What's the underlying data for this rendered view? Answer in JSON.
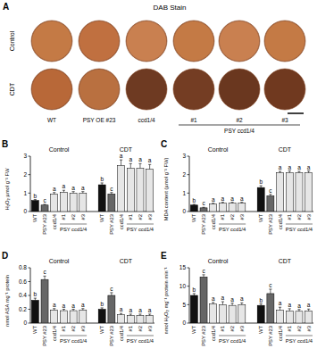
{
  "panel_a": {
    "panel_label": "A",
    "title": "DAB Stain",
    "rows": [
      "Control",
      "CDT"
    ],
    "columns": [
      "WT",
      "PSY OE #23",
      "ccd1/4",
      "#1",
      "#2",
      "#3"
    ],
    "group_label": "PSY ccd1/4"
  },
  "chart_data": [
    {
      "type": "bar",
      "panel_label": "B",
      "y_label": "H₂O₂ µmol g⁻¹ FW",
      "categories": [
        "WT",
        "PSY #23",
        "ccd1/4",
        "#1",
        "#2",
        "#3"
      ],
      "group_label": "PSY ccd1/4",
      "ylim": [
        0,
        3
      ],
      "yticks": [
        0,
        1,
        2,
        3
      ],
      "series": [
        {
          "name": "Control",
          "values": [
            0.6,
            0.35,
            0.95,
            1.05,
            1.0,
            1.0
          ],
          "errors": [
            0.05,
            0.04,
            0.08,
            0.1,
            0.08,
            0.08
          ],
          "annotations": [
            "b",
            "c",
            "a",
            "a",
            "a",
            "a"
          ],
          "colors": [
            "#111111",
            "#666666",
            "#e6e6e6",
            "#e6e6e6",
            "#e6e6e6",
            "#e6e6e6"
          ]
        },
        {
          "name": "CDT",
          "values": [
            1.45,
            0.95,
            2.5,
            2.35,
            2.35,
            2.3
          ],
          "errors": [
            0.1,
            0.08,
            0.3,
            0.25,
            0.25,
            0.25
          ],
          "annotations": [
            "b",
            "c",
            "a",
            "a",
            "a",
            "a"
          ],
          "colors": [
            "#111111",
            "#666666",
            "#e6e6e6",
            "#e6e6e6",
            "#e6e6e6",
            "#e6e6e6"
          ]
        }
      ]
    },
    {
      "type": "bar",
      "panel_label": "C",
      "y_label": "MDA content (µmol g⁻¹ FW)",
      "categories": [
        "WT",
        "PSY #23",
        "ccd1/4",
        "#1",
        "#2",
        "#3"
      ],
      "group_label": "PSY ccd1/4",
      "ylim": [
        0,
        3
      ],
      "yticks": [
        0,
        1,
        2,
        3
      ],
      "series": [
        {
          "name": "Control",
          "values": [
            0.35,
            0.2,
            0.4,
            0.45,
            0.45,
            0.45
          ],
          "errors": [
            0.04,
            0.03,
            0.05,
            0.05,
            0.05,
            0.05
          ],
          "annotations": [
            "b",
            "c",
            "a",
            "a",
            "a",
            "a"
          ],
          "colors": [
            "#111111",
            "#666666",
            "#e6e6e6",
            "#e6e6e6",
            "#e6e6e6",
            "#e6e6e6"
          ]
        },
        {
          "name": "CDT",
          "values": [
            1.3,
            0.85,
            2.1,
            2.1,
            2.1,
            2.1
          ],
          "errors": [
            0.1,
            0.08,
            0.08,
            0.1,
            0.08,
            0.1
          ],
          "annotations": [
            "b",
            "c",
            "a",
            "a",
            "a",
            "a"
          ],
          "colors": [
            "#111111",
            "#666666",
            "#e6e6e6",
            "#e6e6e6",
            "#e6e6e6",
            "#e6e6e6"
          ]
        }
      ]
    },
    {
      "type": "bar",
      "panel_label": "D",
      "y_label": "nmol ASA mg⁻¹ protein",
      "categories": [
        "WT",
        "PSY #23",
        "ccd1/4",
        "#1",
        "#2",
        "#3"
      ],
      "group_label": "PSY ccd1/4",
      "ylim": [
        0,
        0.8
      ],
      "yticks": [
        0,
        0.2,
        0.4,
        0.6,
        0.8
      ],
      "series": [
        {
          "name": "Control",
          "values": [
            0.33,
            0.63,
            0.19,
            0.18,
            0.18,
            0.19
          ],
          "errors": [
            0.03,
            0.05,
            0.02,
            0.02,
            0.02,
            0.02
          ],
          "annotations": [
            "b",
            "c",
            "a",
            "a",
            "a",
            "a"
          ],
          "colors": [
            "#111111",
            "#666666",
            "#e6e6e6",
            "#e6e6e6",
            "#e6e6e6",
            "#e6e6e6"
          ]
        },
        {
          "name": "CDT",
          "values": [
            0.2,
            0.4,
            0.12,
            0.11,
            0.11,
            0.11
          ],
          "errors": [
            0.02,
            0.04,
            0.02,
            0.02,
            0.02,
            0.02
          ],
          "annotations": [
            "b",
            "c",
            "a",
            "a",
            "a",
            "a"
          ],
          "colors": [
            "#111111",
            "#666666",
            "#e6e6e6",
            "#e6e6e6",
            "#e6e6e6",
            "#e6e6e6"
          ]
        }
      ]
    },
    {
      "type": "bar",
      "panel_label": "E",
      "y_label": "nmol H₂O₂ mg⁻¹ protein min⁻¹",
      "categories": [
        "WT",
        "PSY #23",
        "ccd1/4",
        "#1",
        "#2",
        "#3"
      ],
      "group_label": "PSY ccd1/4",
      "ylim": [
        0,
        15
      ],
      "yticks": [
        0,
        5,
        10,
        15
      ],
      "series": [
        {
          "name": "Control",
          "values": [
            7.5,
            12.5,
            5.2,
            5.0,
            4.8,
            5.0
          ],
          "errors": [
            0.5,
            0.6,
            0.4,
            0.8,
            0.6,
            0.5
          ],
          "annotations": [
            "b",
            "c",
            "a",
            "a",
            "a",
            "a"
          ],
          "colors": [
            "#111111",
            "#666666",
            "#e6e6e6",
            "#e6e6e6",
            "#e6e6e6",
            "#e6e6e6"
          ]
        },
        {
          "name": "CDT",
          "values": [
            4.8,
            8.0,
            3.5,
            3.3,
            3.2,
            3.3
          ],
          "errors": [
            0.4,
            1.2,
            0.8,
            0.6,
            0.5,
            0.5
          ],
          "annotations": [
            "b",
            "c",
            "a",
            "a",
            "a",
            "a"
          ],
          "colors": [
            "#111111",
            "#666666",
            "#e6e6e6",
            "#e6e6e6",
            "#e6e6e6",
            "#e6e6e6"
          ]
        }
      ]
    }
  ]
}
